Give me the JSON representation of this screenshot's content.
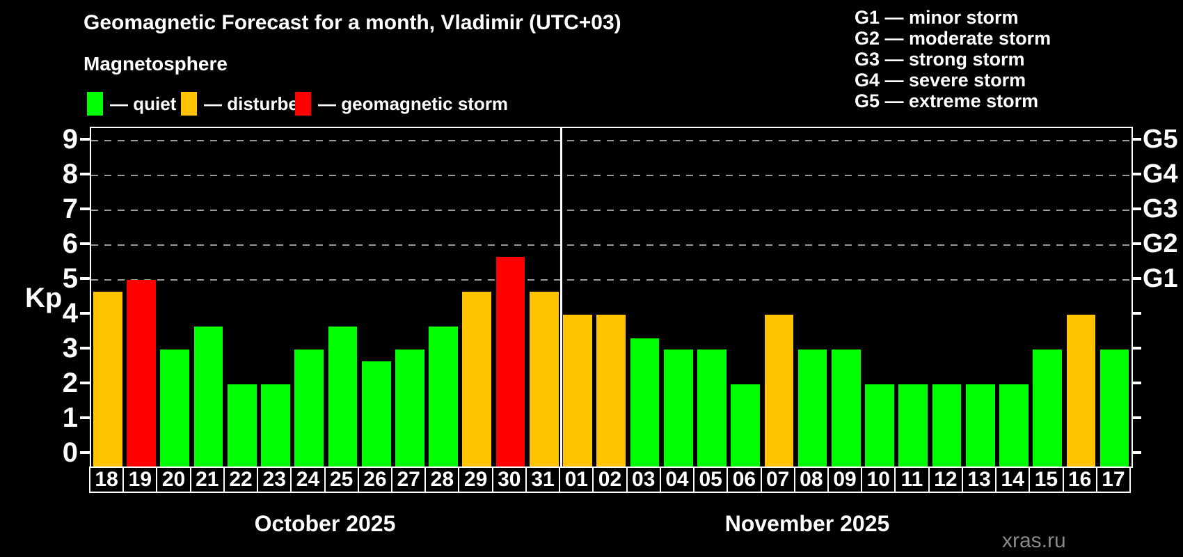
{
  "title": "Geomagnetic Forecast for a month, Vladimir (UTC+03)",
  "subtitle": "Magnetosphere",
  "status_legend": [
    {
      "label": "— quiet",
      "status": "quiet",
      "color": "#00ff00"
    },
    {
      "label": "— disturbed",
      "status": "disturbed",
      "color": "#ffc300"
    },
    {
      "label": "— geomagnetic storm",
      "status": "storm",
      "color": "#ff0000"
    }
  ],
  "g_scale_legend": [
    "G1 — minor storm",
    "G2 — moderate storm",
    "G3 — strong storm",
    "G4 — severe storm",
    "G5 — extreme storm"
  ],
  "watermark": "xras.ru",
  "colors": {
    "quiet": "#00ff00",
    "disturbed": "#ffc300",
    "storm": "#ff0000",
    "background": "#000000",
    "axis": "#ffffff",
    "grid": "#9a9a9a"
  },
  "chart_data": {
    "type": "bar",
    "ylabel": "Kp",
    "ylim": [
      0,
      9.4
    ],
    "yticks": [
      0,
      1,
      2,
      3,
      4,
      5,
      6,
      7,
      8,
      9
    ],
    "grid": "dashed horizontal at Kp 5-9",
    "gridlines_at_kp": [
      5,
      6,
      7,
      8,
      9
    ],
    "right_axis_labels": [
      {
        "label": "G1",
        "kp": 5
      },
      {
        "label": "G2",
        "kp": 6
      },
      {
        "label": "G3",
        "kp": 7
      },
      {
        "label": "G4",
        "kp": 8
      },
      {
        "label": "G5",
        "kp": 9
      }
    ],
    "months": [
      {
        "label": "October 2025",
        "bars": [
          {
            "day": "18",
            "kp": 4.67,
            "status": "disturbed"
          },
          {
            "day": "19",
            "kp": 5.0,
            "status": "storm"
          },
          {
            "day": "20",
            "kp": 3.0,
            "status": "quiet"
          },
          {
            "day": "21",
            "kp": 3.67,
            "status": "quiet"
          },
          {
            "day": "22",
            "kp": 2.0,
            "status": "quiet"
          },
          {
            "day": "23",
            "kp": 2.0,
            "status": "quiet"
          },
          {
            "day": "24",
            "kp": 3.0,
            "status": "quiet"
          },
          {
            "day": "25",
            "kp": 3.67,
            "status": "quiet"
          },
          {
            "day": "26",
            "kp": 2.67,
            "status": "quiet"
          },
          {
            "day": "27",
            "kp": 3.0,
            "status": "quiet"
          },
          {
            "day": "28",
            "kp": 3.67,
            "status": "quiet"
          },
          {
            "day": "29",
            "kp": 4.67,
            "status": "disturbed"
          },
          {
            "day": "30",
            "kp": 5.67,
            "status": "storm"
          },
          {
            "day": "31",
            "kp": 4.67,
            "status": "disturbed"
          }
        ]
      },
      {
        "label": "November 2025",
        "bars": [
          {
            "day": "01",
            "kp": 4.0,
            "status": "disturbed"
          },
          {
            "day": "02",
            "kp": 4.0,
            "status": "disturbed"
          },
          {
            "day": "03",
            "kp": 3.33,
            "status": "quiet"
          },
          {
            "day": "04",
            "kp": 3.0,
            "status": "quiet"
          },
          {
            "day": "05",
            "kp": 3.0,
            "status": "quiet"
          },
          {
            "day": "06",
            "kp": 2.0,
            "status": "quiet"
          },
          {
            "day": "07",
            "kp": 4.0,
            "status": "disturbed"
          },
          {
            "day": "08",
            "kp": 3.0,
            "status": "quiet"
          },
          {
            "day": "09",
            "kp": 3.0,
            "status": "quiet"
          },
          {
            "day": "10",
            "kp": 2.0,
            "status": "quiet"
          },
          {
            "day": "11",
            "kp": 2.0,
            "status": "quiet"
          },
          {
            "day": "12",
            "kp": 2.0,
            "status": "quiet"
          },
          {
            "day": "13",
            "kp": 2.0,
            "status": "quiet"
          },
          {
            "day": "14",
            "kp": 2.0,
            "status": "quiet"
          },
          {
            "day": "15",
            "kp": 3.0,
            "status": "quiet"
          },
          {
            "day": "16",
            "kp": 4.0,
            "status": "disturbed"
          },
          {
            "day": "17",
            "kp": 3.0,
            "status": "quiet"
          }
        ]
      }
    ]
  }
}
